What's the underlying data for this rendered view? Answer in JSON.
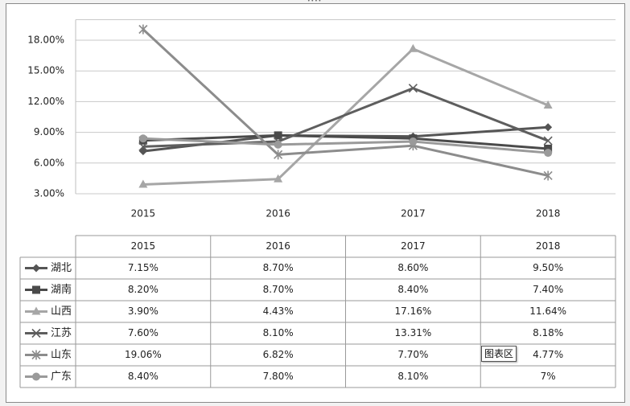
{
  "chart_data": {
    "type": "line",
    "categories": [
      "2015",
      "2016",
      "2017",
      "2018"
    ],
    "y_tick_labels": [
      "3.00%",
      "6.00%",
      "9.00%",
      "12.00%",
      "15.00%",
      "18.00%"
    ],
    "ylim": [
      3,
      20
    ],
    "grid": true,
    "legend": "data-table-below",
    "series": [
      {
        "name": "湖北",
        "marker": "diamond",
        "color": "#555555",
        "values": [
          7.15,
          8.7,
          8.6,
          9.5
        ],
        "labels": [
          "7.15%",
          "8.70%",
          "8.60%",
          "9.50%"
        ]
      },
      {
        "name": "湖南",
        "marker": "square",
        "color": "#4a4a4a",
        "values": [
          8.2,
          8.7,
          8.4,
          7.4
        ],
        "labels": [
          "8.20%",
          "8.70%",
          "8.40%",
          "7.40%"
        ]
      },
      {
        "name": "山西",
        "marker": "triangle",
        "color": "#a6a6a6",
        "values": [
          3.9,
          4.43,
          17.16,
          11.64
        ],
        "labels": [
          "3.90%",
          "4.43%",
          "17.16%",
          "11.64%"
        ]
      },
      {
        "name": "江苏",
        "marker": "x",
        "color": "#5e5e5e",
        "values": [
          7.6,
          8.1,
          13.31,
          8.18
        ],
        "labels": [
          "7.60%",
          "8.10%",
          "13.31%",
          "8.18%"
        ]
      },
      {
        "name": "山东",
        "marker": "star",
        "color": "#8c8c8c",
        "values": [
          19.06,
          6.82,
          7.7,
          4.77
        ],
        "labels": [
          "19.06%",
          "6.82%",
          "7.70%",
          "4.77%"
        ]
      },
      {
        "name": "广东",
        "marker": "circle",
        "color": "#9a9a9a",
        "values": [
          8.4,
          7.8,
          8.1,
          7.0
        ],
        "labels": [
          "8.40%",
          "7.80%",
          "8.10%",
          "7%"
        ]
      }
    ]
  },
  "tooltip": {
    "text": "图表区"
  },
  "handle": {
    "text": "••••"
  }
}
